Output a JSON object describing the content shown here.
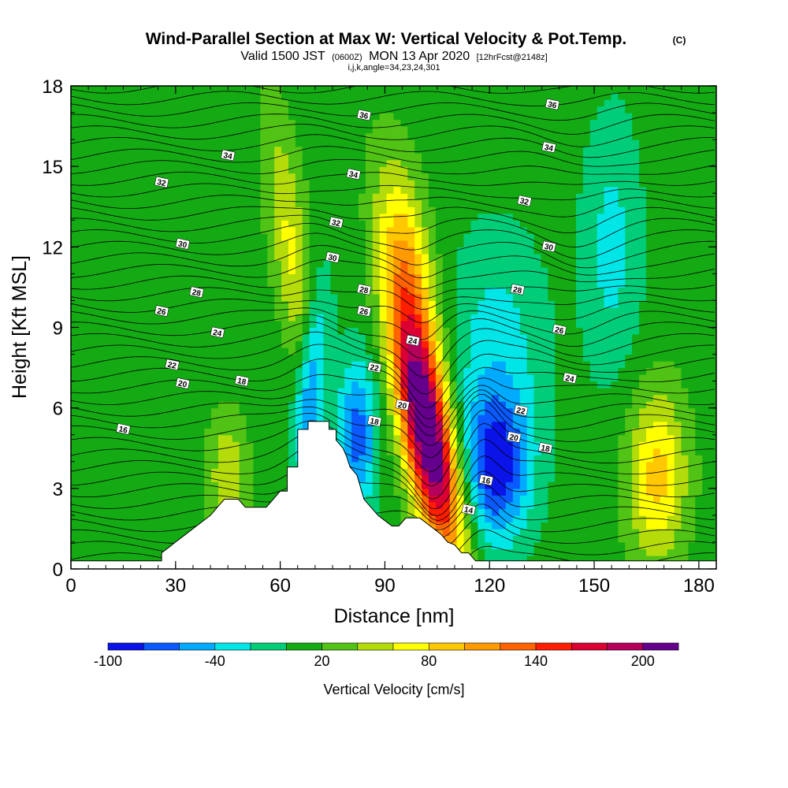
{
  "header": {
    "title": "Wind-Parallel Section at Max W: Vertical Velocity & Pot.Temp.",
    "copyright": "(C)",
    "subtitle_a": "Valid 1500 JST",
    "subtitle_b": "(0600Z)",
    "subtitle_c": "MON 13 Apr 2020",
    "subtitle_d": "[12hrFcst@2148z]",
    "indices": "i,j,k,angle=34,23,24,301"
  },
  "colorbar": {
    "title": "Vertical Velocity [cm/s]",
    "tick_labels": [
      "-100",
      "-40",
      "20",
      "80",
      "140",
      "200"
    ],
    "tick_values": [
      -100,
      -40,
      20,
      80,
      140,
      200
    ],
    "levels": [
      -100,
      -80,
      -60,
      -40,
      -20,
      0,
      20,
      40,
      60,
      80,
      100,
      120,
      140,
      160,
      180,
      200,
      220
    ],
    "colors": [
      "#0a14e8",
      "#0a5aff",
      "#00aaff",
      "#00e6e6",
      "#00cd78",
      "#14aa14",
      "#50c314",
      "#b4dc0a",
      "#ffff00",
      "#ffc800",
      "#ff9b00",
      "#ff6400",
      "#ff1e00",
      "#dc0032",
      "#b4005a",
      "#64008c"
    ]
  },
  "chart_data": {
    "type": "heatmap",
    "xlabel": "Distance [nm]",
    "ylabel": "Height [Kft MSL]",
    "xlim": [
      0,
      185
    ],
    "ylim": [
      0,
      18
    ],
    "x_ticks": [
      0,
      30,
      60,
      90,
      120,
      150,
      180
    ],
    "y_ticks": [
      0,
      3,
      6,
      9,
      12,
      15,
      18
    ],
    "field": "Vertical Velocity [cm/s]",
    "background_value": 10,
    "features": [
      {
        "kind": "updraft",
        "x": 103,
        "y": 4.5,
        "peak": 190,
        "sx": 5,
        "sy": 3.0,
        "tilt": -1.4
      },
      {
        "kind": "updraft",
        "x": 98,
        "y": 8.5,
        "peak": 90,
        "sx": 5,
        "sy": 3.5,
        "tilt": -1.2
      },
      {
        "kind": "updraft",
        "x": 97,
        "y": 12.0,
        "peak": 45,
        "sx": 5,
        "sy": 2.5,
        "tilt": -1.0
      },
      {
        "kind": "updraft",
        "x": 63,
        "y": 12.0,
        "peak": 55,
        "sx": 4,
        "sy": 3.5,
        "tilt": -1.0
      },
      {
        "kind": "updraft",
        "x": 168,
        "y": 3.5,
        "peak": 80,
        "sx": 6,
        "sy": 2.2,
        "tilt": 0
      },
      {
        "kind": "updraft",
        "x": 45,
        "y": 3.5,
        "peak": 50,
        "sx": 4,
        "sy": 1.6,
        "tilt": 0
      },
      {
        "kind": "downdraft",
        "x": 122,
        "y": 3.8,
        "peak": -95,
        "sx": 7,
        "sy": 2.0,
        "tilt": 0
      },
      {
        "kind": "downdraft",
        "x": 69,
        "y": 7.0,
        "peak": -75,
        "sx": 3,
        "sy": 2.5,
        "tilt": 0.6
      },
      {
        "kind": "downdraft",
        "x": 82,
        "y": 5.0,
        "peak": -80,
        "sx": 4,
        "sy": 2.0,
        "tilt": 0
      },
      {
        "kind": "downdraft",
        "x": 122,
        "y": 8.5,
        "peak": -35,
        "sx": 10,
        "sy": 3.0,
        "tilt": 0
      },
      {
        "kind": "downdraft",
        "x": 155,
        "y": 12.0,
        "peak": -35,
        "sx": 6,
        "sy": 3.5,
        "tilt": 0
      }
    ],
    "terrain": {
      "x": [
        0,
        26,
        26,
        28,
        30,
        33,
        36,
        40,
        42,
        44,
        46,
        48,
        50,
        52,
        54,
        56,
        58,
        60,
        62,
        62,
        65,
        65,
        68,
        68,
        74,
        74,
        76,
        76,
        78,
        79,
        80,
        82,
        84,
        86,
        88,
        90,
        92,
        94,
        96,
        98,
        100,
        103,
        106,
        108,
        110,
        112,
        114,
        116,
        118,
        120,
        120,
        185
      ],
      "y": [
        0.3,
        0.3,
        0.6,
        0.8,
        1.0,
        1.3,
        1.6,
        2.0,
        2.3,
        2.6,
        2.6,
        2.6,
        2.3,
        2.3,
        2.3,
        2.3,
        2.6,
        2.9,
        2.9,
        3.8,
        3.8,
        5.2,
        5.2,
        5.5,
        5.5,
        5.2,
        5.2,
        4.8,
        4.5,
        4.2,
        3.8,
        3.5,
        2.6,
        2.3,
        2.0,
        1.8,
        1.6,
        1.6,
        1.9,
        1.9,
        1.9,
        1.6,
        1.3,
        1.0,
        0.9,
        0.6,
        0.6,
        0.3,
        0.3,
        0.3,
        0.3,
        0.3
      ]
    },
    "theta_contour_labels": [
      {
        "text": "36",
        "x": 84,
        "y": 16.9
      },
      {
        "text": "36",
        "x": 138,
        "y": 17.3
      },
      {
        "text": "34",
        "x": 45,
        "y": 15.4
      },
      {
        "text": "34",
        "x": 81,
        "y": 14.7
      },
      {
        "text": "34",
        "x": 137,
        "y": 15.7
      },
      {
        "text": "32",
        "x": 26,
        "y": 14.4
      },
      {
        "text": "32",
        "x": 76,
        "y": 12.9
      },
      {
        "text": "32",
        "x": 130,
        "y": 13.7
      },
      {
        "text": "30",
        "x": 32,
        "y": 12.1
      },
      {
        "text": "30",
        "x": 75,
        "y": 11.6
      },
      {
        "text": "30",
        "x": 137,
        "y": 12.0
      },
      {
        "text": "28",
        "x": 36,
        "y": 10.3
      },
      {
        "text": "28",
        "x": 84,
        "y": 10.4
      },
      {
        "text": "28",
        "x": 128,
        "y": 10.4
      },
      {
        "text": "26",
        "x": 26,
        "y": 9.6
      },
      {
        "text": "26",
        "x": 84,
        "y": 9.6
      },
      {
        "text": "26",
        "x": 140,
        "y": 8.9
      },
      {
        "text": "24",
        "x": 42,
        "y": 8.8
      },
      {
        "text": "24",
        "x": 98,
        "y": 8.5
      },
      {
        "text": "24",
        "x": 143,
        "y": 7.1
      },
      {
        "text": "22",
        "x": 29,
        "y": 7.6
      },
      {
        "text": "22",
        "x": 87,
        "y": 7.5
      },
      {
        "text": "22",
        "x": 129,
        "y": 5.9
      },
      {
        "text": "20",
        "x": 32,
        "y": 6.9
      },
      {
        "text": "20",
        "x": 95,
        "y": 6.1
      },
      {
        "text": "20",
        "x": 127,
        "y": 4.9
      },
      {
        "text": "18",
        "x": 49,
        "y": 7.0
      },
      {
        "text": "18",
        "x": 87,
        "y": 5.5
      },
      {
        "text": "18",
        "x": 136,
        "y": 4.5
      },
      {
        "text": "16",
        "x": 15,
        "y": 5.2
      },
      {
        "text": "16",
        "x": 119,
        "y": 3.3
      },
      {
        "text": "14",
        "x": 114,
        "y": 2.2
      }
    ]
  }
}
